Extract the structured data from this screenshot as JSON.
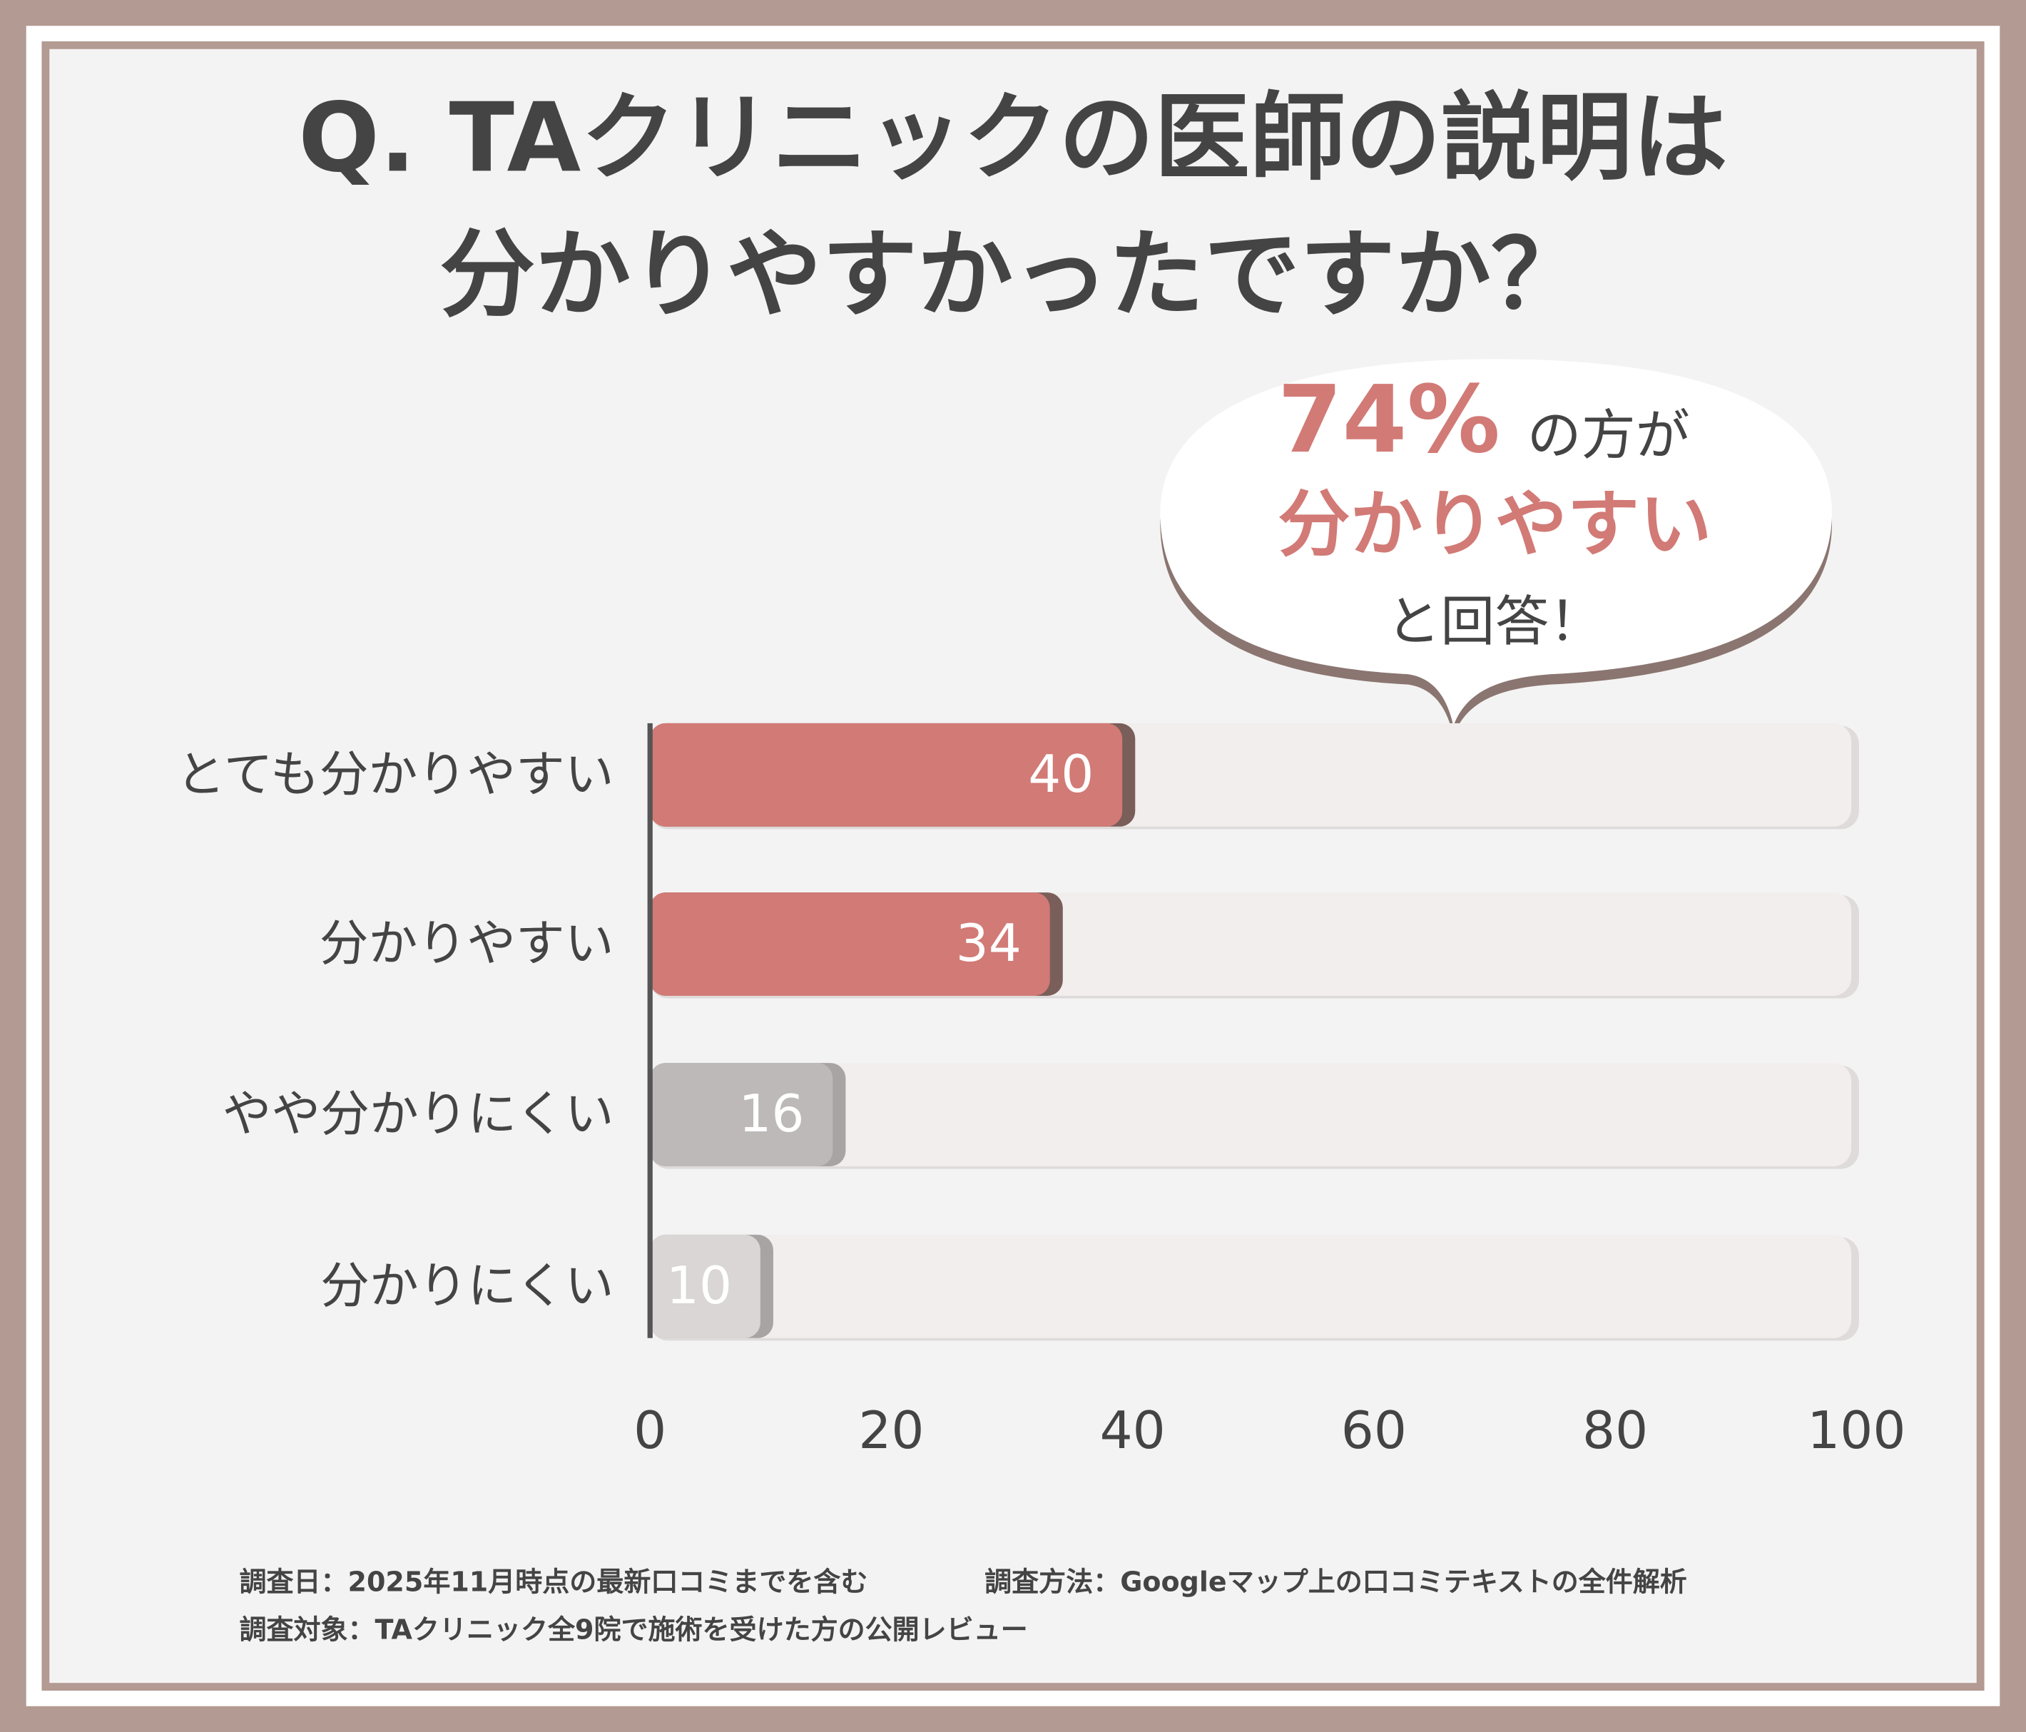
{
  "chart_data": {
    "type": "hbar",
    "title": [
      "Q. TAクリニックの医師の説明は",
      "分かりやすかったですか？"
    ],
    "callout": {
      "highlight": "74%",
      "line1": "の方が",
      "line2": "分かりやすい",
      "line3": "と回答！"
    },
    "categories": [
      "とても分かりやすい",
      "分かりやすい",
      "やや分かりにくい",
      "分かりにくい"
    ],
    "values": [
      40,
      34,
      16,
      10
    ],
    "colors": [
      "#d27a76",
      "#d27a76",
      "#bdb9b8",
      "#d9d6d5"
    ],
    "xlim": [
      0,
      100
    ],
    "xticks": [
      0,
      20,
      40,
      60,
      80,
      100
    ],
    "notes": [
      "調査日：2025年11月時点の最新口コミまでを含む",
      "調査方法：Googleマップ上の口コミテキストの全件解析",
      "調査対象：TAクリニック全9院で施術を受けた方の公開レビュー"
    ]
  }
}
